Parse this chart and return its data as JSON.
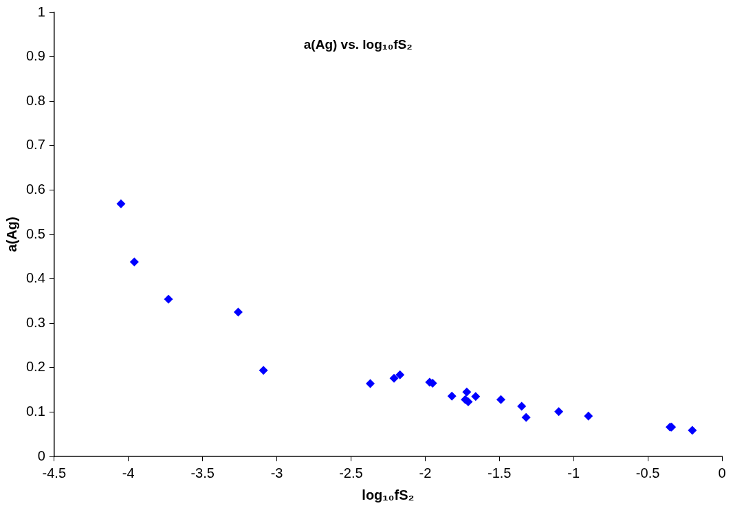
{
  "chart_data": {
    "type": "scatter",
    "title": "a(Ag) vs. log₁₀fS₂",
    "xlabel": "log₁₀fS₂",
    "ylabel": "a(Ag)",
    "x": [
      -4.05,
      -3.96,
      -3.73,
      -3.26,
      -3.09,
      -2.37,
      -2.21,
      -2.17,
      -1.97,
      -1.95,
      -1.82,
      -1.72,
      -1.73,
      -1.71,
      -1.66,
      -1.49,
      -1.35,
      -1.32,
      -1.1,
      -0.9,
      -0.35,
      -0.34,
      -0.2
    ],
    "series": [
      {
        "color": "#0000ff",
        "values": [
          0.569,
          0.438,
          0.354,
          0.325,
          0.194,
          0.164,
          0.176,
          0.184,
          0.167,
          0.165,
          0.136,
          0.145,
          0.128,
          0.123,
          0.135,
          0.128,
          0.113,
          0.088,
          0.101,
          0.091,
          0.066,
          0.066,
          0.059
        ]
      }
    ],
    "xlim": [
      -4.5,
      0
    ],
    "xticks": [
      -4.5,
      -4,
      -3.5,
      -3,
      -2.5,
      -2,
      -1.5,
      -1,
      -0.5,
      0
    ],
    "ylim": [
      0,
      1
    ],
    "yticks": [
      0,
      0.1,
      0.2,
      0.3,
      0.4,
      0.5,
      0.6,
      0.7,
      0.8,
      0.9,
      1
    ],
    "grid": false,
    "legend": false,
    "marker": "diamond"
  }
}
